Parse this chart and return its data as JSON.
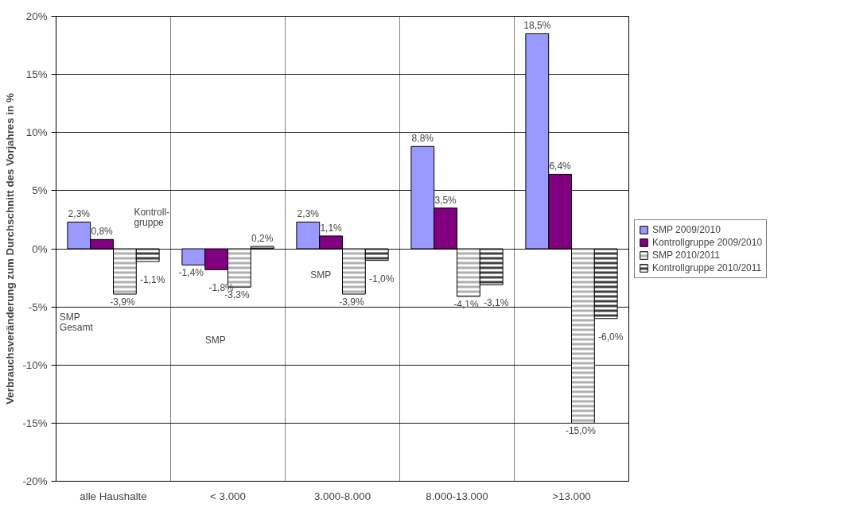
{
  "chart_data": {
    "type": "bar",
    "ylabel": "Verbrauchsveränderung zum Durchschnitt des Vorjahres in %",
    "categories": [
      "alle Haushalte",
      "< 3.000",
      "3.000-8.000",
      "8.000-13.000",
      ">13.000"
    ],
    "series": [
      {
        "name": "SMP 2009/2010",
        "color": "#9999ff",
        "values": [
          2.3,
          -1.4,
          2.3,
          8.8,
          18.5
        ],
        "value_labels": [
          "2,3%",
          "-1,4%",
          "2,3%",
          "8,8%",
          "18,5%"
        ]
      },
      {
        "name": "Kontrollgruppe 2009/2010",
        "color": "#800080",
        "values": [
          0.8,
          -1.8,
          1.1,
          3.5,
          6.4
        ],
        "value_labels": [
          "0,8%",
          "-1,8%",
          "1,1%",
          "3,5%",
          "6,4%"
        ]
      },
      {
        "name": "SMP 2010/2011",
        "color": "#b0b0b0",
        "values": [
          -3.9,
          -3.3,
          -3.9,
          -4.1,
          -15.0
        ],
        "value_labels": [
          "-3,9%",
          "-3,3%",
          "-3,9%",
          "-4,1%",
          "-15,0%"
        ]
      },
      {
        "name": "Kontrollgruppe 2010/2011",
        "color": "#404040",
        "values": [
          -1.1,
          0.2,
          -1.0,
          -3.1,
          -6.0
        ],
        "value_labels": [
          "-1,1%",
          "0,2%",
          "-1,0%",
          "-3,1%",
          "-6,0%"
        ]
      }
    ],
    "ylim": [
      -20,
      20
    ],
    "yticks": [
      {
        "value": -20,
        "label": "-20%"
      },
      {
        "value": -15,
        "label": "-15%"
      },
      {
        "value": -10,
        "label": "-10%"
      },
      {
        "value": -5,
        "label": "-5%"
      },
      {
        "value": 0,
        "label": "0%"
      },
      {
        "value": 5,
        "label": "5%"
      },
      {
        "value": 10,
        "label": "10%"
      },
      {
        "value": 15,
        "label": "15%"
      },
      {
        "value": 20,
        "label": "20%"
      }
    ],
    "annotations": [
      "Kontroll-\ngruppe",
      "SMP\nGesamt",
      "SMP",
      "SMP"
    ],
    "grid": true,
    "legend": "right"
  }
}
